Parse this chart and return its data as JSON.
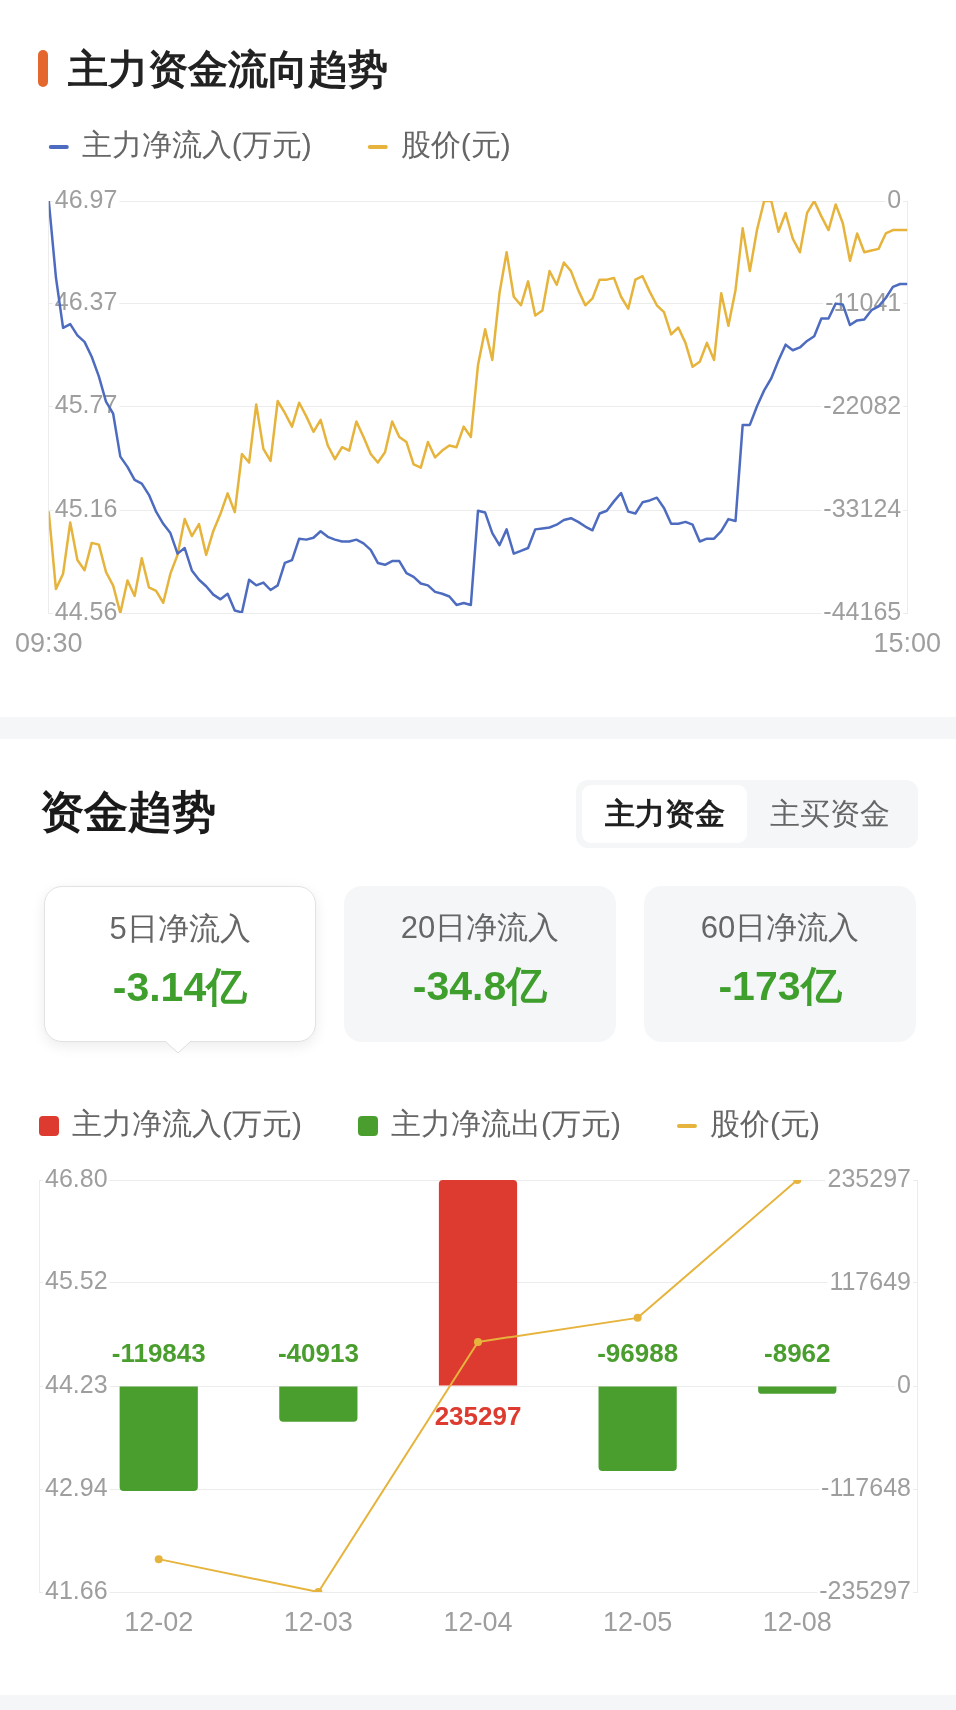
{
  "chart_data": [
    {
      "type": "line",
      "title": "主力资金流向趋势",
      "legend": "top left",
      "grid": "y",
      "categories": [
        "09:30",
        null,
        null,
        null,
        null,
        null,
        null,
        null,
        null,
        null,
        null,
        null,
        null,
        null,
        null,
        null,
        null,
        null,
        null,
        null,
        null,
        null,
        null,
        null,
        null,
        null,
        null,
        null,
        null,
        null,
        null,
        null,
        null,
        null,
        null,
        null,
        null,
        null,
        null,
        null,
        null,
        null,
        null,
        null,
        null,
        null,
        null,
        null,
        null,
        null,
        null,
        null,
        null,
        null,
        null,
        null,
        null,
        null,
        null,
        null,
        null,
        null,
        null,
        null,
        null,
        null,
        null,
        null,
        null,
        null,
        null,
        null,
        null,
        null,
        null,
        null,
        null,
        null,
        null,
        null,
        null,
        null,
        null,
        null,
        null,
        null,
        null,
        null,
        null,
        null,
        null,
        null,
        null,
        null,
        null,
        null,
        null,
        null,
        null,
        null,
        null,
        null,
        null,
        null,
        null,
        null,
        null,
        null,
        null,
        null,
        null,
        null,
        null,
        null,
        null,
        null,
        null,
        null,
        null,
        null,
        "15:00"
      ],
      "ylim": [
        44.56,
        46.97
      ],
      "yticks": [
        44.56,
        45.16,
        45.77,
        46.37,
        46.97
      ],
      "y2lim": [
        -44165,
        0
      ],
      "y2ticks": [
        -44165,
        -33124,
        -22082,
        -11041,
        0
      ],
      "series": [
        {
          "name": "主力净流入(万元)",
          "color": "#4e6cbf",
          "axis": "y2",
          "values": [
            0,
            -8200,
            -13600,
            -13200,
            -14400,
            -15100,
            -16700,
            -18800,
            -21500,
            -22800,
            -27400,
            -28500,
            -29900,
            -30300,
            -31500,
            -33300,
            -34600,
            -35600,
            -37800,
            -37200,
            -39600,
            -40600,
            -41300,
            -42200,
            -42700,
            -42100,
            -43900,
            -44100,
            -40600,
            -41200,
            -40900,
            -41700,
            -41200,
            -38800,
            -38500,
            -36200,
            -36300,
            -36100,
            -35400,
            -36000,
            -36300,
            -36500,
            -36500,
            -36300,
            -36700,
            -37400,
            -38800,
            -39000,
            -38600,
            -38600,
            -39900,
            -40300,
            -41000,
            -41200,
            -41900,
            -42100,
            -42400,
            -43300,
            -43100,
            -43300,
            -33200,
            -33400,
            -35600,
            -36900,
            -35200,
            -37800,
            -37500,
            -37200,
            -35200,
            -35100,
            -35000,
            -34700,
            -34200,
            -34000,
            -34400,
            -34900,
            -35300,
            -33500,
            -33200,
            -32200,
            -31300,
            -33300,
            -33500,
            -32300,
            -32100,
            -31800,
            -32900,
            -34600,
            -34600,
            -34400,
            -34700,
            -36500,
            -36200,
            -36200,
            -35400,
            -34100,
            -34300,
            -24000,
            -24000,
            -22000,
            -20300,
            -19000,
            -17100,
            -15400,
            -16000,
            -15700,
            -15000,
            -14500,
            -12600,
            -12600,
            -11000,
            -11100,
            -13300,
            -12800,
            -12700,
            -11700,
            -11300,
            -10400,
            -9200,
            -8900,
            -8900
          ]
        },
        {
          "name": "股价(元)",
          "color": "#e6b43c",
          "values": [
            45.15,
            44.7,
            44.79,
            45.09,
            44.87,
            44.81,
            44.97,
            44.96,
            44.8,
            44.72,
            44.56,
            44.75,
            44.66,
            44.88,
            44.71,
            44.69,
            44.62,
            44.79,
            44.9,
            45.11,
            45.01,
            45.08,
            44.9,
            45.04,
            45.14,
            45.26,
            45.15,
            45.49,
            45.44,
            45.78,
            45.52,
            45.45,
            45.8,
            45.73,
            45.65,
            45.79,
            45.71,
            45.62,
            45.69,
            45.54,
            45.46,
            45.53,
            45.51,
            45.68,
            45.59,
            45.49,
            45.44,
            45.5,
            45.68,
            45.59,
            45.56,
            45.43,
            45.41,
            45.56,
            45.47,
            45.51,
            45.54,
            45.53,
            45.65,
            45.59,
            46.01,
            46.22,
            46.04,
            46.43,
            46.67,
            46.41,
            46.36,
            46.5,
            46.3,
            46.33,
            46.56,
            46.48,
            46.61,
            46.56,
            46.45,
            46.36,
            46.4,
            46.51,
            46.51,
            46.52,
            46.41,
            46.34,
            46.51,
            46.53,
            46.44,
            46.36,
            46.32,
            46.19,
            46.23,
            46.14,
            46.0,
            46.03,
            46.14,
            46.04,
            46.43,
            46.24,
            46.45,
            46.81,
            46.56,
            46.8,
            46.97,
            46.97,
            46.79,
            46.9,
            46.75,
            46.67,
            46.9,
            46.97,
            46.88,
            46.8,
            46.95,
            46.84,
            46.62,
            46.78,
            46.67,
            46.68,
            46.69,
            46.78,
            46.8,
            46.8,
            46.8
          ]
        }
      ]
    },
    {
      "type": "other",
      "title": "资金趋势",
      "annotations": [
        "主力资金",
        "主买资金"
      ],
      "categories": [
        "5日净流入",
        "20日净流入",
        "60日净流入"
      ],
      "value_labels": [
        "-3.14亿",
        "-34.8亿",
        "-173亿"
      ]
    },
    {
      "type": "bar",
      "legend": "top left",
      "grid": "y",
      "categories": [
        "12-02",
        "12-03",
        "12-04",
        "12-05",
        "12-08"
      ],
      "ylim": [
        41.66,
        46.8
      ],
      "yticks": [
        41.66,
        42.94,
        44.23,
        45.52,
        {
          "value": 46.8,
          "label": "46.80"
        }
      ],
      "y2lim": [
        -235297,
        235297
      ],
      "y2ticks": [
        -235297,
        -117648,
        0,
        117649,
        235297
      ],
      "series": [
        {
          "name": "主力净流入(万元)",
          "type": "bar",
          "axis": "y2",
          "color": "#dd3b2f",
          "data_labels": true,
          "values": [
            null,
            null,
            235297,
            null,
            null
          ]
        },
        {
          "name": "主力净流出(万元)",
          "type": "bar",
          "axis": "y2",
          "color": "#4a9e2e",
          "data_labels": true,
          "values": [
            -119843,
            -40913,
            null,
            -96988,
            -8962
          ]
        },
        {
          "name": "股价(元)",
          "type": "line",
          "color": "#e6b43c",
          "marker": "circle",
          "values": [
            42.07,
            41.66,
            44.78,
            45.08,
            46.8
          ]
        }
      ]
    }
  ]
}
